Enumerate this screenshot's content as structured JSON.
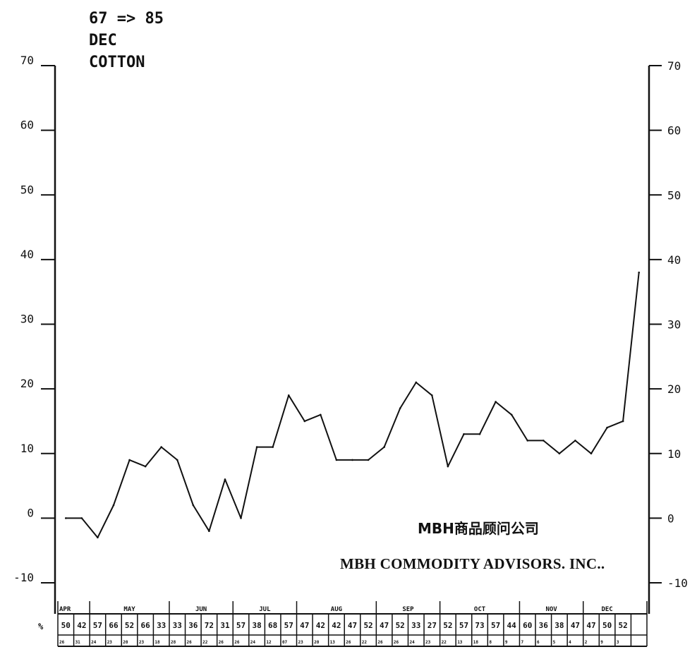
{
  "header": {
    "line1": "67 => 85",
    "line2": "DEC",
    "line3": "COTTON"
  },
  "watermark": {
    "chinese": "MBH商品顾问公司",
    "english": "MBH COMMODITY ADVISORS. INC.."
  },
  "table": {
    "row_label": "%"
  },
  "chart_data": {
    "type": "line",
    "title": "",
    "xlabel": "",
    "ylabel": "",
    "ylim": [
      -10,
      70
    ],
    "y_ticks": [
      70,
      60,
      50,
      40,
      30,
      20,
      10,
      0,
      -10
    ],
    "y_tick_labels": [
      "70",
      "60",
      "50",
      "40",
      "30",
      "20",
      "10",
      "0",
      "-10"
    ],
    "grid": false,
    "line_color": "#111111",
    "series": [
      {
        "values": [
          0,
          0,
          -3,
          2,
          9,
          8,
          11,
          9,
          2,
          -2,
          6,
          0,
          11,
          11,
          19,
          15,
          16,
          9,
          9,
          9,
          11,
          17,
          21,
          19,
          8,
          13,
          13,
          18,
          16,
          12,
          12,
          10,
          12,
          10,
          14,
          15,
          38
        ]
      }
    ],
    "months": [
      {
        "label": "APR",
        "weeks": 2
      },
      {
        "label": "MAY",
        "weeks": 5
      },
      {
        "label": "JUN",
        "weeks": 4
      },
      {
        "label": "JUL",
        "weeks": 4
      },
      {
        "label": "AUG",
        "weeks": 5
      },
      {
        "label": "SEP",
        "weeks": 4
      },
      {
        "label": "OCT",
        "weeks": 5
      },
      {
        "label": "NOV",
        "weeks": 4
      },
      {
        "label": "DEC",
        "weeks": 3
      }
    ],
    "week_percents": [
      "50",
      "42",
      "57",
      "66",
      "52",
      "66",
      "33",
      "33",
      "36",
      "72",
      "31",
      "57",
      "38",
      "68",
      "57",
      "47",
      "42",
      "42",
      "47",
      "52",
      "47",
      "52",
      "33",
      "27",
      "52",
      "57",
      "73",
      "57",
      "44",
      "60",
      "36",
      "38",
      "47",
      "47",
      "50",
      "52",
      ""
    ],
    "week_days": [
      "26",
      "31",
      "24",
      "23",
      "20",
      "23",
      "18",
      "28",
      "26",
      "22",
      "26",
      "26",
      "24",
      "12",
      "07",
      "23",
      "20",
      "13",
      "26",
      "22",
      "26",
      "26",
      "24",
      "23",
      "22",
      "13",
      "18",
      "8",
      "9",
      "7",
      "6",
      "5",
      "4",
      "2",
      "9",
      "3",
      ""
    ]
  }
}
